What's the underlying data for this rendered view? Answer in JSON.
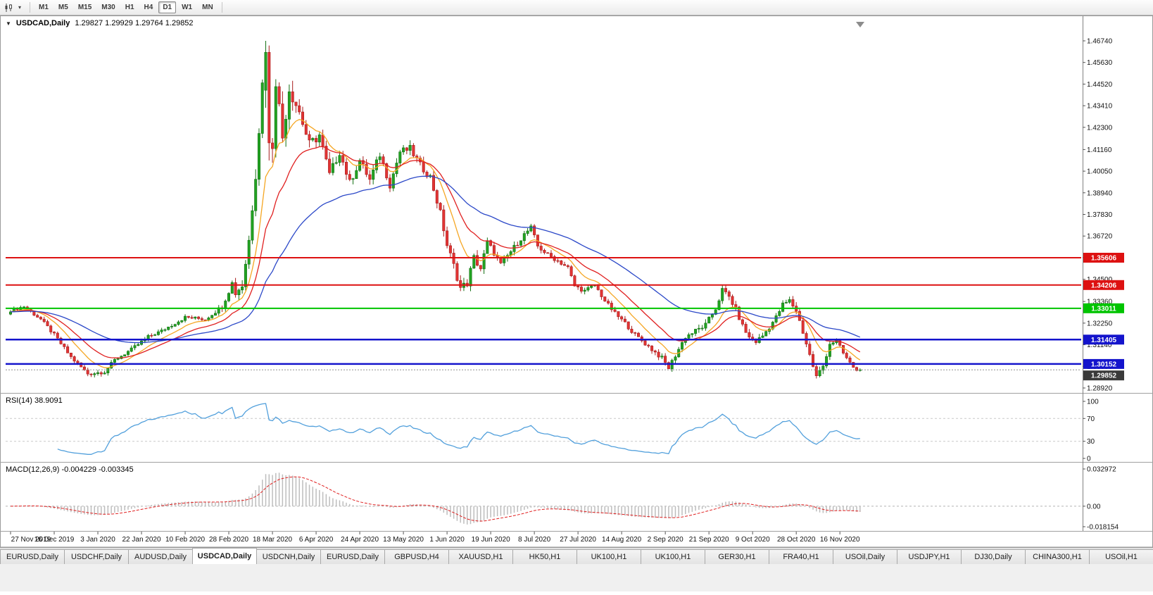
{
  "toolbar": {
    "timeframes": [
      {
        "label": "M1",
        "active": false
      },
      {
        "label": "M5",
        "active": false
      },
      {
        "label": "M15",
        "active": false
      },
      {
        "label": "M30",
        "active": false
      },
      {
        "label": "H1",
        "active": false
      },
      {
        "label": "H4",
        "active": false
      },
      {
        "label": "D1",
        "active": true
      },
      {
        "label": "W1",
        "active": false
      },
      {
        "label": "MN",
        "active": false
      }
    ],
    "icons": {
      "chart_type": "candlestick-chart-icon",
      "dropdown": "dropdown-caret-icon"
    }
  },
  "chart": {
    "symbol_label": "USDCAD,Daily",
    "quote_text": "1.29827 1.29929 1.29764 1.29852",
    "rsi_label": "RSI(14) 38.9091",
    "macd_label": "MACD(12,26,9) -0.004229 -0.003345",
    "collapse_icon": "collapse-triangle-icon",
    "shift_marker_icon": "shift-marker-icon"
  },
  "chart_data": {
    "type": "candlestick",
    "symbol": "USDCAD",
    "timeframe": "Daily",
    "quote": {
      "open": 1.29827,
      "high": 1.29929,
      "low": 1.29764,
      "close": 1.29852
    },
    "price_range": [
      1.2892,
      1.4674
    ],
    "y_axis_labels": [
      "1.46740",
      "1.45630",
      "1.44520",
      "1.43410",
      "1.42300",
      "1.41160",
      "1.40050",
      "1.38940",
      "1.37830",
      "1.36720",
      "1.35610",
      "1.34500",
      "1.33360",
      "1.32250",
      "1.31140",
      "1.30030",
      "1.28920"
    ],
    "x_ticks": [
      "27 Nov 2019",
      "16 Dec 2019",
      "3 Jan 2020",
      "22 Jan 2020",
      "10 Feb 2020",
      "28 Feb 2020",
      "18 Mar 2020",
      "6 Apr 2020",
      "24 Apr 2020",
      "13 May 2020",
      "1 Jun 2020",
      "19 Jun 2020",
      "8 Jul 2020",
      "27 Jul 2020",
      "14 Aug 2020",
      "2 Sep 2020",
      "21 Sep 2020",
      "9 Oct 2020",
      "28 Oct 2020",
      "16 Nov 2020"
    ],
    "bars_per_tick": 13,
    "num_bars": 254,
    "price_path_keypoints": [
      [
        0,
        1.329
      ],
      [
        4,
        1.331
      ],
      [
        9,
        1.3245
      ],
      [
        13,
        1.3165
      ],
      [
        18,
        1.305
      ],
      [
        23,
        1.2965
      ],
      [
        28,
        1.2975
      ],
      [
        31,
        1.3035
      ],
      [
        36,
        1.309
      ],
      [
        41,
        1.3155
      ],
      [
        45,
        1.3185
      ],
      [
        52,
        1.3255
      ],
      [
        58,
        1.3245
      ],
      [
        63,
        1.331
      ],
      [
        66,
        1.343
      ],
      [
        67,
        1.338
      ],
      [
        69,
        1.342
      ],
      [
        71,
        1.365
      ],
      [
        73,
        1.4
      ],
      [
        75,
        1.445
      ],
      [
        76,
        1.462
      ],
      [
        77,
        1.438
      ],
      [
        78,
        1.415
      ],
      [
        79,
        1.448
      ],
      [
        81,
        1.418
      ],
      [
        83,
        1.443
      ],
      [
        86,
        1.431
      ],
      [
        89,
        1.414
      ],
      [
        92,
        1.419
      ],
      [
        95,
        1.3985
      ],
      [
        98,
        1.4105
      ],
      [
        101,
        1.3945
      ],
      [
        104,
        1.406
      ],
      [
        107,
        1.396
      ],
      [
        110,
        1.409
      ],
      [
        113,
        1.3935
      ],
      [
        116,
        1.4105
      ],
      [
        119,
        1.412
      ],
      [
        122,
        1.4035
      ],
      [
        125,
        1.3975
      ],
      [
        128,
        1.379
      ],
      [
        130,
        1.3625
      ],
      [
        132,
        1.352
      ],
      [
        134,
        1.3405
      ],
      [
        136,
        1.343
      ],
      [
        138,
        1.356
      ],
      [
        140,
        1.3505
      ],
      [
        142,
        1.364
      ],
      [
        144,
        1.3585
      ],
      [
        146,
        1.3525
      ],
      [
        148,
        1.357
      ],
      [
        150,
        1.3615
      ],
      [
        153,
        1.368
      ],
      [
        155,
        1.3715
      ],
      [
        157,
        1.362
      ],
      [
        160,
        1.3575
      ],
      [
        163,
        1.3545
      ],
      [
        166,
        1.351
      ],
      [
        168,
        1.3415
      ],
      [
        171,
        1.339
      ],
      [
        174,
        1.342
      ],
      [
        177,
        1.334
      ],
      [
        180,
        1.3275
      ],
      [
        183,
        1.3225
      ],
      [
        186,
        1.3165
      ],
      [
        189,
        1.312
      ],
      [
        192,
        1.3075
      ],
      [
        194,
        1.3045
      ],
      [
        196,
        1.2995
      ],
      [
        198,
        1.306
      ],
      [
        201,
        1.3155
      ],
      [
        204,
        1.3185
      ],
      [
        207,
        1.3215
      ],
      [
        210,
        1.33
      ],
      [
        212,
        1.3395
      ],
      [
        214,
        1.336
      ],
      [
        216,
        1.3295
      ],
      [
        218,
        1.321
      ],
      [
        220,
        1.315
      ],
      [
        222,
        1.313
      ],
      [
        224,
        1.316
      ],
      [
        226,
        1.3205
      ],
      [
        228,
        1.3255
      ],
      [
        230,
        1.332
      ],
      [
        232,
        1.334
      ],
      [
        234,
        1.329
      ],
      [
        236,
        1.318
      ],
      [
        238,
        1.306
      ],
      [
        240,
        1.295
      ],
      [
        242,
        1.3005
      ],
      [
        244,
        1.312
      ],
      [
        246,
        1.3135
      ],
      [
        248,
        1.307
      ],
      [
        250,
        1.302
      ],
      [
        252,
        1.298
      ],
      [
        253,
        1.29852
      ]
    ],
    "volatility_keypoints": [
      [
        0,
        0.0016
      ],
      [
        20,
        0.0022
      ],
      [
        35,
        0.0018
      ],
      [
        60,
        0.002
      ],
      [
        66,
        0.0035
      ],
      [
        71,
        0.007
      ],
      [
        76,
        0.011
      ],
      [
        82,
        0.009
      ],
      [
        90,
        0.006
      ],
      [
        100,
        0.0045
      ],
      [
        115,
        0.004
      ],
      [
        128,
        0.0042
      ],
      [
        136,
        0.0045
      ],
      [
        145,
        0.003
      ],
      [
        160,
        0.0024
      ],
      [
        180,
        0.0022
      ],
      [
        196,
        0.0026
      ],
      [
        212,
        0.003
      ],
      [
        228,
        0.0026
      ],
      [
        238,
        0.0034
      ],
      [
        242,
        0.0028
      ],
      [
        248,
        0.002
      ],
      [
        253,
        0.0012
      ]
    ],
    "forced_candles": [
      {
        "index": 76,
        "open": 1.442,
        "high": 1.4674,
        "low": 1.433,
        "close": 1.4615
      },
      {
        "index": 77,
        "open": 1.4615,
        "high": 1.465,
        "low": 1.406,
        "close": 1.415
      },
      {
        "index": 253,
        "open": 1.29827,
        "high": 1.29929,
        "low": 1.29764,
        "close": 1.29852
      }
    ],
    "levels": [
      {
        "price": 1.35606,
        "label": "1.35606",
        "color": "#dd1111",
        "width": 2
      },
      {
        "price": 1.34206,
        "label": "1.34206",
        "color": "#dd1111",
        "width": 2
      },
      {
        "price": 1.33011,
        "label": "1.33011",
        "color": "#00c400",
        "width": 2
      },
      {
        "price": 1.31405,
        "label": "1.31405",
        "color": "#1414cc",
        "width": 2.5
      },
      {
        "price": 1.30152,
        "label": "1.30152",
        "color": "#1414cc",
        "width": 2.5
      }
    ],
    "current_price": {
      "value": 1.29852,
      "label": "1.29852",
      "badge_color": "#3a3a3a"
    },
    "moving_averages": [
      {
        "period": 10,
        "color": "#f5a623"
      },
      {
        "period": 20,
        "color": "#e02020"
      },
      {
        "period": 50,
        "color": "#2b48c8"
      }
    ],
    "rsi": {
      "period": 14,
      "value": 38.9091,
      "axis_labels": [
        "100",
        "70",
        "30",
        "0"
      ],
      "axis_values": [
        100,
        70,
        30,
        0
      ],
      "guide_levels": [
        70,
        30
      ],
      "color": "#52a0dc"
    },
    "macd": {
      "fast": 12,
      "slow": 26,
      "signal": 9,
      "macd_value": -0.004229,
      "signal_value": -0.003345,
      "axis_labels": [
        "0.032972",
        "0.00",
        "-0.018154"
      ],
      "hist_color": "#bdbdbd",
      "signal_color": "#e02020"
    },
    "candle_colors": {
      "bull": "#22a322",
      "bull_edge": "#137013",
      "bear": "#e23434",
      "bear_edge": "#a81d1d"
    }
  },
  "tabs": [
    {
      "label": "EURUSD,Daily",
      "active": false
    },
    {
      "label": "USDCHF,Daily",
      "active": false
    },
    {
      "label": "AUDUSD,Daily",
      "active": false
    },
    {
      "label": "USDCAD,Daily",
      "active": true
    },
    {
      "label": "USDCNH,Daily",
      "active": false
    },
    {
      "label": "EURUSD,Daily",
      "active": false
    },
    {
      "label": "GBPUSD,H4",
      "active": false
    },
    {
      "label": "XAUUSD,H1",
      "active": false
    },
    {
      "label": "HK50,H1",
      "active": false
    },
    {
      "label": "UK100,H1",
      "active": false
    },
    {
      "label": "UK100,H1",
      "active": false
    },
    {
      "label": "GER30,H1",
      "active": false
    },
    {
      "label": "FRA40,H1",
      "active": false
    },
    {
      "label": "USOil,Daily",
      "active": false
    },
    {
      "label": "USDJPY,H1",
      "active": false
    },
    {
      "label": "DJ30,Daily",
      "active": false
    },
    {
      "label": "CHINA300,H1",
      "active": false
    },
    {
      "label": "USOil,H1",
      "active": false
    }
  ]
}
